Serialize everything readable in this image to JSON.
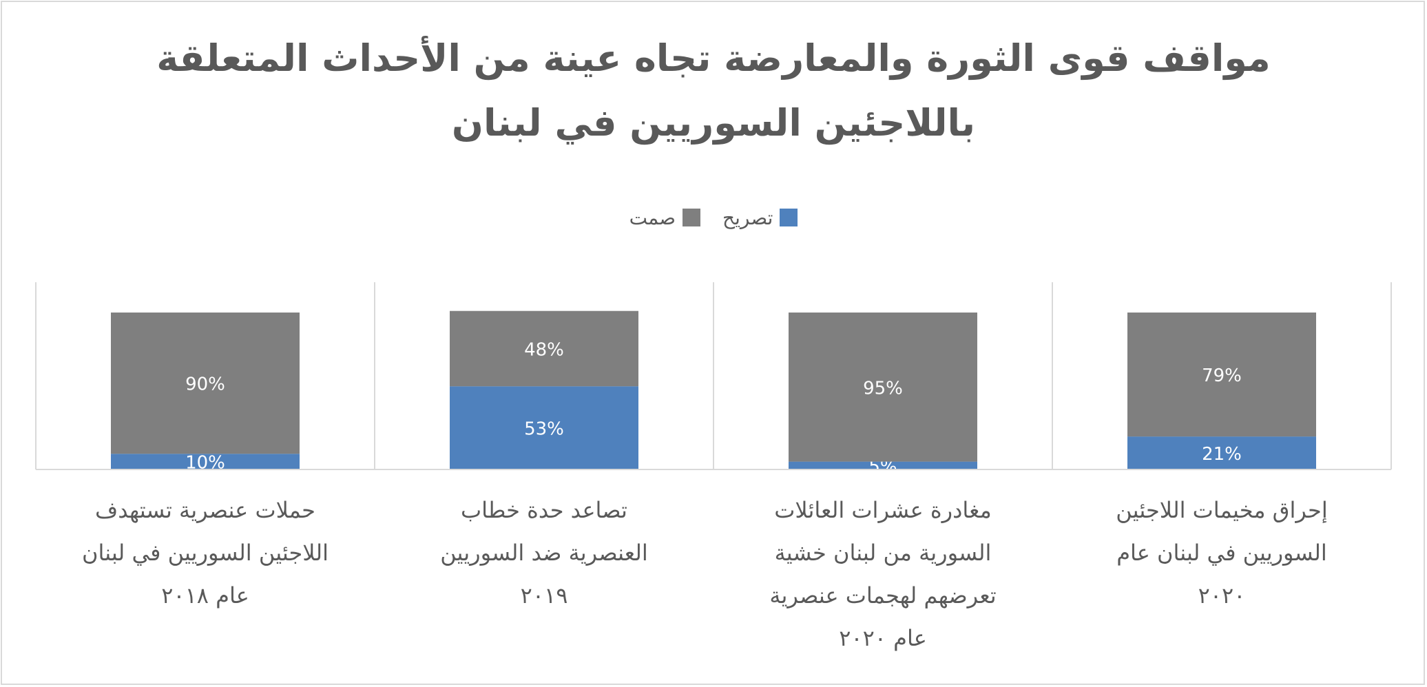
{
  "chart_data": {
    "type": "bar",
    "stacked": true,
    "title_lines": [
      "مواقف قوى الثورة والمعارضة تجاه عينة من الأحداث المتعلقة",
      "باللاجئين السوريين في لبنان"
    ],
    "categories": [
      "إحراق مخيمات اللاجئين السوريين في لبنان عام ٢٠٢٠",
      "مغادرة عشرات العائلات السورية من لبنان خشية تعرضهم لهجمات عنصرية عام ٢٠٢٠",
      "تصاعد حدة خطاب العنصرية ضد السوريين ٢٠١٩",
      "حملات عنصرية تستهدف اللاجئين السوريين في لبنان عام ٢٠١٨"
    ],
    "category_lines": [
      [
        "إحراق مخيمات اللاجئين",
        "السوريين في لبنان عام",
        "٢٠٢٠"
      ],
      [
        "مغادرة عشرات العائلات",
        "السورية من لبنان خشية",
        "تعرضهم لهجمات عنصرية",
        "عام ٢٠٢٠"
      ],
      [
        "تصاعد حدة خطاب",
        "العنصرية ضد السوريين",
        "٢٠١٩"
      ],
      [
        "حملات عنصرية تستهدف",
        "اللاجئين السوريين في لبنان",
        "عام ٢٠١٨"
      ]
    ],
    "series": [
      {
        "name": "تصريح",
        "values": [
          21,
          5,
          53,
          10
        ],
        "labels": [
          "21%",
          "5%",
          "53%",
          "10%"
        ],
        "color": "#4f81bd"
      },
      {
        "name": "صمت",
        "values": [
          79,
          95,
          48,
          90
        ],
        "labels": [
          "79%",
          "95%",
          "48%",
          "90%"
        ],
        "color": "#7f7f7f"
      }
    ],
    "x_direction": "rtl",
    "ylim": [
      0,
      100
    ],
    "grid": true,
    "legend_position": "top"
  }
}
